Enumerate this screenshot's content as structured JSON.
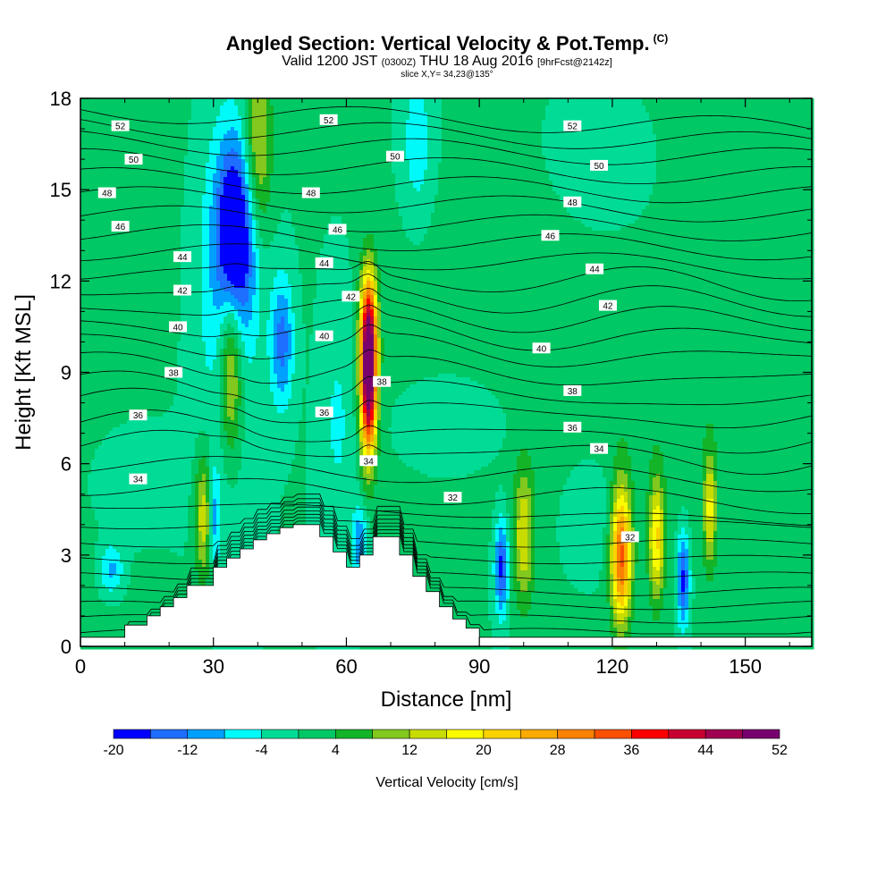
{
  "header": {
    "title": "Angled Section: Vertical Velocity & Pot.Temp.",
    "title_tag": "(C)",
    "valid_prefix": "Valid 1200 JST",
    "valid_utc": "(0300Z)",
    "valid_date": "THU 18 Aug 2016",
    "forecast_tag": "[9hrFcst@2142z]",
    "slice": "slice X,Y= 34,23@135°"
  },
  "chart_data": {
    "type": "heatmap",
    "xlabel": "Distance [nm]",
    "ylabel": "Height [Kft MSL]",
    "xlim": [
      0,
      165
    ],
    "ylim": [
      0,
      18
    ],
    "xticks": [
      0,
      30,
      60,
      90,
      120,
      150
    ],
    "yticks": [
      0,
      3,
      6,
      9,
      12,
      15,
      18
    ],
    "background_value": 0,
    "colorbar": {
      "title": "Vertical Velocity [cm/s]",
      "levels": [
        -20,
        -16,
        -12,
        -8,
        -4,
        0,
        4,
        8,
        12,
        16,
        20,
        24,
        28,
        32,
        36,
        40,
        44,
        48,
        52
      ],
      "tick_labels": [
        "-20",
        "-12",
        "-4",
        "4",
        "12",
        "20",
        "28",
        "36",
        "44",
        "52"
      ],
      "colors": [
        "#0000ff",
        "#1e6eff",
        "#00a0ff",
        "#00fafa",
        "#00dc96",
        "#00c864",
        "#14b428",
        "#82c81e",
        "#c8dc00",
        "#fafa00",
        "#fad200",
        "#faaa00",
        "#fa8200",
        "#fa5000",
        "#fa0000",
        "#c80032",
        "#a00050",
        "#78006e"
      ]
    },
    "velocity_features": [
      {
        "x": 0,
        "y": 13,
        "sx": 20,
        "sy": 10,
        "v": 3
      },
      {
        "x": 150,
        "y": 14,
        "sx": 30,
        "sy": 8,
        "v": 3
      },
      {
        "x": 100,
        "y": 10,
        "sx": 25,
        "sy": 4,
        "v": 2.5
      },
      {
        "x": 35,
        "y": 13.5,
        "sx": 3.2,
        "sy": 2.2,
        "v": -24
      },
      {
        "x": 32,
        "y": 11,
        "sx": 6,
        "sy": 5,
        "v": -6
      },
      {
        "x": 76,
        "y": 16.5,
        "sx": 2.5,
        "sy": 1.8,
        "v": -7
      },
      {
        "x": 120,
        "y": 15.5,
        "sx": 12,
        "sy": 2.5,
        "v": -4
      },
      {
        "x": 40,
        "y": 16.3,
        "sx": 2.2,
        "sy": 2.2,
        "v": 15
      },
      {
        "x": 34,
        "y": 9.2,
        "sx": 1.8,
        "sy": 2.0,
        "v": 18
      },
      {
        "x": 28,
        "y": 4.3,
        "sx": 1.6,
        "sy": 1.5,
        "v": 17
      },
      {
        "x": 30,
        "y": 4.2,
        "sx": 1.0,
        "sy": 1.2,
        "v": -14
      },
      {
        "x": 45.5,
        "y": 10,
        "sx": 1.8,
        "sy": 1.5,
        "v": -14
      },
      {
        "x": 58,
        "y": 7.5,
        "sx": 3,
        "sy": 3,
        "v": -5
      },
      {
        "x": 65,
        "y": 8.6,
        "sx": 1.3,
        "sy": 1.7,
        "v": 50
      },
      {
        "x": 65,
        "y": 10.6,
        "sx": 1.3,
        "sy": 1.4,
        "v": 26
      },
      {
        "x": 63,
        "y": 3.4,
        "sx": 1.2,
        "sy": 0.8,
        "v": -12
      },
      {
        "x": 12,
        "y": 5.5,
        "sx": 8,
        "sy": 1.5,
        "v": -5
      },
      {
        "x": 7,
        "y": 2.5,
        "sx": 2,
        "sy": 0.6,
        "v": -10
      },
      {
        "x": 86,
        "y": 7.5,
        "sx": 10,
        "sy": 1.3,
        "v": -4
      },
      {
        "x": 95,
        "y": 2.6,
        "sx": 1.1,
        "sy": 1.1,
        "v": -18
      },
      {
        "x": 100,
        "y": 3.6,
        "sx": 1.6,
        "sy": 1.6,
        "v": 15
      },
      {
        "x": 122,
        "y": 3.0,
        "sx": 1.6,
        "sy": 1.6,
        "v": 33
      },
      {
        "x": 130,
        "y": 3.5,
        "sx": 1.2,
        "sy": 1.4,
        "v": 20
      },
      {
        "x": 136,
        "y": 2.2,
        "sx": 1.0,
        "sy": 1.1,
        "v": -18
      },
      {
        "x": 142,
        "y": 4.5,
        "sx": 1.0,
        "sy": 1.3,
        "v": 16
      },
      {
        "x": 115,
        "y": 4.5,
        "sx": 5,
        "sy": 1.5,
        "v": -4
      }
    ],
    "terrain": {
      "x": [
        0,
        10,
        10,
        15,
        15,
        18,
        18,
        21,
        21,
        24,
        24,
        30,
        30,
        33,
        33,
        36,
        36,
        39,
        39,
        42,
        42,
        45,
        45,
        48,
        48,
        54,
        54,
        57,
        57,
        60,
        60,
        63,
        63,
        66,
        66,
        72,
        72,
        75,
        75,
        78,
        78,
        81,
        81,
        84,
        84,
        87,
        87,
        90,
        90,
        165
      ],
      "y": [
        0.3,
        0.3,
        0.7,
        0.7,
        1.0,
        1.0,
        1.3,
        1.3,
        1.6,
        1.6,
        2.0,
        2.0,
        2.6,
        2.6,
        2.9,
        2.9,
        3.2,
        3.2,
        3.5,
        3.5,
        3.7,
        3.7,
        3.9,
        3.9,
        4.0,
        4.0,
        3.6,
        3.6,
        3.1,
        3.1,
        2.6,
        2.6,
        3.0,
        3.0,
        3.6,
        3.6,
        3.0,
        3.0,
        2.3,
        2.3,
        1.8,
        1.8,
        1.3,
        1.3,
        0.9,
        0.9,
        0.6,
        0.6,
        0.3,
        0.3
      ]
    },
    "theta_contours": [
      {
        "base": 0.45,
        "label": "32",
        "label_x": 84
      },
      {
        "base": 0.9
      },
      {
        "base": 1.35
      },
      {
        "base": 1.8
      },
      {
        "base": 2.3
      },
      {
        "base": 2.85
      },
      {
        "base": 3.4
      },
      {
        "base": 4.0
      },
      {
        "base": 4.7
      },
      {
        "base": 5.3,
        "label": "34",
        "label_x": 13
      },
      {
        "base": 6.0
      },
      {
        "base": 6.7,
        "label": "36",
        "label_x": 11
      },
      {
        "base": 7.3
      },
      {
        "base": 8.0
      },
      {
        "base": 8.6,
        "label": "38",
        "label_x": 20
      },
      {
        "base": 9.3
      },
      {
        "base": 10.0,
        "label": "40",
        "label_x": 20
      },
      {
        "base": 10.6
      },
      {
        "base": 11.2,
        "label": "42",
        "label_x": 20
      },
      {
        "base": 11.8
      },
      {
        "base": 12.4,
        "label": "44",
        "label_x": 20
      },
      {
        "base": 13.0
      },
      {
        "base": 13.6,
        "label": "46",
        "label_x": 9
      },
      {
        "base": 14.2
      },
      {
        "base": 14.8,
        "label": "48",
        "label_x": 6
      },
      {
        "base": 15.4
      },
      {
        "base": 16.0,
        "label": "50",
        "label_x": 12
      },
      {
        "base": 16.6
      },
      {
        "base": 17.1,
        "label": "52",
        "label_x": 9
      },
      {
        "base": 17.6
      }
    ],
    "contour_labels": [
      {
        "text": "52",
        "x": 9,
        "y": 17.1
      },
      {
        "text": "52",
        "x": 56,
        "y": 17.3
      },
      {
        "text": "52",
        "x": 111,
        "y": 17.1
      },
      {
        "text": "50",
        "x": 12,
        "y": 16.0
      },
      {
        "text": "50",
        "x": 71,
        "y": 16.1
      },
      {
        "text": "50",
        "x": 117,
        "y": 15.8
      },
      {
        "text": "48",
        "x": 6,
        "y": 14.9
      },
      {
        "text": "48",
        "x": 52,
        "y": 14.9
      },
      {
        "text": "48",
        "x": 111,
        "y": 14.6
      },
      {
        "text": "46",
        "x": 9,
        "y": 13.8
      },
      {
        "text": "46",
        "x": 58,
        "y": 13.7
      },
      {
        "text": "46",
        "x": 106,
        "y": 13.5
      },
      {
        "text": "44",
        "x": 23,
        "y": 12.8
      },
      {
        "text": "44",
        "x": 55,
        "y": 12.6
      },
      {
        "text": "44",
        "x": 116,
        "y": 12.4
      },
      {
        "text": "42",
        "x": 23,
        "y": 11.7
      },
      {
        "text": "42",
        "x": 61,
        "y": 11.5
      },
      {
        "text": "42",
        "x": 119,
        "y": 11.2
      },
      {
        "text": "40",
        "x": 22,
        "y": 10.5
      },
      {
        "text": "40",
        "x": 55,
        "y": 10.2
      },
      {
        "text": "40",
        "x": 104,
        "y": 9.8
      },
      {
        "text": "38",
        "x": 21,
        "y": 9.0
      },
      {
        "text": "38",
        "x": 68,
        "y": 8.7
      },
      {
        "text": "38",
        "x": 111,
        "y": 8.4
      },
      {
        "text": "36",
        "x": 13,
        "y": 7.6
      },
      {
        "text": "36",
        "x": 55,
        "y": 7.7
      },
      {
        "text": "36",
        "x": 111,
        "y": 7.2
      },
      {
        "text": "34",
        "x": 13,
        "y": 5.5
      },
      {
        "text": "34",
        "x": 65,
        "y": 6.1
      },
      {
        "text": "34",
        "x": 117,
        "y": 6.5
      },
      {
        "text": "32",
        "x": 84,
        "y": 4.9
      },
      {
        "text": "32",
        "x": 124,
        "y": 3.6
      }
    ]
  }
}
